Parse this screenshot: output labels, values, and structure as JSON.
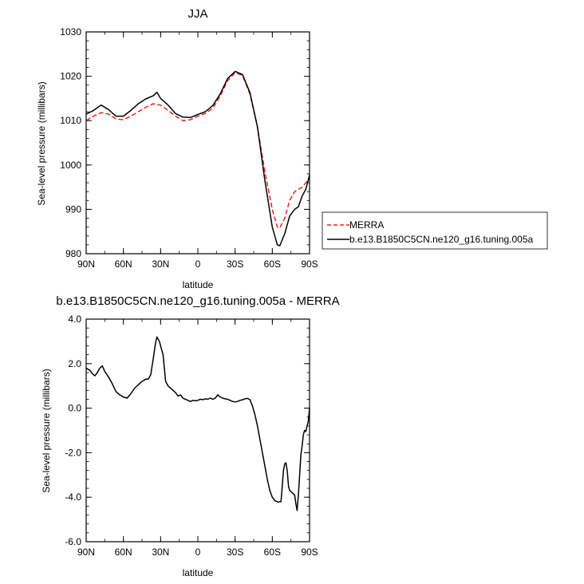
{
  "chart_data": [
    {
      "type": "line",
      "title": "JJA",
      "xlabel": "latitude",
      "ylabel": "Sea-level pressure (millibars)",
      "xlim": [
        90,
        -90
      ],
      "ylim": [
        980,
        1030
      ],
      "xticks": [
        90,
        60,
        30,
        0,
        -30,
        -60,
        -90
      ],
      "xtick_labels": [
        "90N",
        "60N",
        "30N",
        "0",
        "30S",
        "60S",
        "90S"
      ],
      "yticks": [
        980,
        990,
        1000,
        1010,
        1020,
        1030
      ],
      "ytick_labels": [
        "980",
        "990",
        "1000",
        "1010",
        "1020",
        "1030"
      ],
      "legend_position": "right",
      "series": [
        {
          "name": "MERRA",
          "color": "#e8241f",
          "dash": "dashed",
          "x": [
            90,
            84,
            78,
            72,
            66,
            60,
            54,
            48,
            42,
            36,
            30,
            24,
            18,
            12,
            6,
            0,
            -6,
            -12,
            -18,
            -24,
            -30,
            -36,
            -42,
            -48,
            -54,
            -60,
            -64,
            -66,
            -70,
            -74,
            -78,
            -84,
            -90
          ],
          "y": [
            1010,
            1011,
            1011.8,
            1011.5,
            1010.4,
            1010.2,
            1011,
            1012,
            1013,
            1013.8,
            1013.5,
            1012.3,
            1011,
            1010,
            1010.2,
            1011,
            1011.6,
            1012.8,
            1015.5,
            1019,
            1020.8,
            1020.2,
            1016,
            1008.5,
            998.5,
            990,
            986,
            985.8,
            988,
            992,
            994,
            995,
            997
          ]
        },
        {
          "name": "b.e13.B1850C5CN.ne120_g16.tuning.005a",
          "color": "#000000",
          "dash": "solid",
          "x": [
            90,
            84,
            78,
            72,
            66,
            60,
            54,
            48,
            42,
            36,
            33,
            30,
            24,
            18,
            12,
            6,
            0,
            -6,
            -12,
            -18,
            -24,
            -30,
            -36,
            -42,
            -48,
            -54,
            -60,
            -64,
            -66,
            -70,
            -74,
            -78,
            -81,
            -84,
            -87,
            -90
          ],
          "y": [
            1011.5,
            1012.3,
            1013.5,
            1012.5,
            1011,
            1011,
            1012.3,
            1013.8,
            1014.9,
            1015.6,
            1016.4,
            1015,
            1013.5,
            1011.6,
            1010.8,
            1010.7,
            1011.4,
            1012,
            1013.4,
            1016,
            1019.5,
            1021.1,
            1020.4,
            1016.3,
            1008.6,
            996.5,
            986,
            982,
            981.8,
            984.5,
            988.5,
            990,
            990.6,
            993,
            994.5,
            997.8
          ]
        }
      ]
    },
    {
      "type": "line",
      "title": "b.e13.B1850C5CN.ne120_g16.tuning.005a - MERRA",
      "xlabel": "latitude",
      "ylabel": "Sea-level pressure (millibars)",
      "xlim": [
        90,
        -90
      ],
      "ylim": [
        -6,
        4
      ],
      "xticks": [
        90,
        60,
        30,
        0,
        -30,
        -60,
        -90
      ],
      "xtick_labels": [
        "90N",
        "60N",
        "30N",
        "0",
        "30S",
        "60S",
        "90S"
      ],
      "yticks": [
        -6,
        -4,
        -2,
        0,
        2,
        4
      ],
      "ytick_labels": [
        "-6.0",
        "-4.0",
        "-2.0",
        "0.0",
        "2.0",
        "4.0"
      ],
      "series": [
        {
          "color": "#000000",
          "dash": "solid",
          "x": [
            90,
            87,
            85,
            83,
            81,
            79,
            77,
            75,
            72,
            69,
            66,
            63,
            60,
            57,
            54,
            51,
            48,
            45,
            42,
            40,
            38,
            36,
            35,
            34,
            33,
            32,
            31,
            30,
            28,
            26,
            24,
            21,
            18,
            16,
            14,
            12,
            10,
            8,
            6,
            4,
            2,
            0,
            -2,
            -4,
            -6,
            -8,
            -10,
            -12,
            -14,
            -16,
            -18,
            -20,
            -22,
            -24,
            -26,
            -28,
            -30,
            -32,
            -34,
            -36,
            -38,
            -40,
            -42,
            -44,
            -46,
            -48,
            -50,
            -52,
            -54,
            -56,
            -58,
            -60,
            -62,
            -64,
            -65,
            -66,
            -67,
            -68,
            -69,
            -70,
            -71,
            -72,
            -73,
            -74,
            -75,
            -76,
            -77,
            -78,
            -79,
            -80,
            -81,
            -82,
            -83,
            -84,
            -85,
            -86,
            -87,
            -88,
            -89,
            -90
          ],
          "y": [
            1.8,
            1.7,
            1.55,
            1.45,
            1.6,
            1.8,
            1.9,
            1.65,
            1.4,
            1.1,
            0.75,
            0.6,
            0.5,
            0.45,
            0.65,
            0.9,
            1.05,
            1.2,
            1.3,
            1.3,
            1.5,
            2.2,
            2.6,
            2.95,
            3.2,
            3.1,
            3.0,
            2.8,
            2.4,
            1.2,
            1.0,
            0.85,
            0.7,
            0.55,
            0.6,
            0.45,
            0.4,
            0.35,
            0.3,
            0.35,
            0.33,
            0.35,
            0.4,
            0.38,
            0.42,
            0.4,
            0.45,
            0.4,
            0.45,
            0.6,
            0.5,
            0.45,
            0.42,
            0.4,
            0.35,
            0.3,
            0.28,
            0.3,
            0.35,
            0.38,
            0.42,
            0.44,
            0.38,
            0.1,
            -0.3,
            -0.8,
            -1.4,
            -2.0,
            -2.6,
            -3.2,
            -3.7,
            -4.0,
            -4.15,
            -4.2,
            -4.22,
            -4.2,
            -4.2,
            -3.5,
            -2.8,
            -2.5,
            -2.45,
            -2.8,
            -3.5,
            -3.7,
            -3.75,
            -3.8,
            -3.85,
            -3.9,
            -4.3,
            -4.6,
            -3.9,
            -3.0,
            -2.1,
            -1.7,
            -1.2,
            -1.0,
            -1.05,
            -0.8,
            -0.6,
            0.0
          ]
        }
      ]
    }
  ]
}
